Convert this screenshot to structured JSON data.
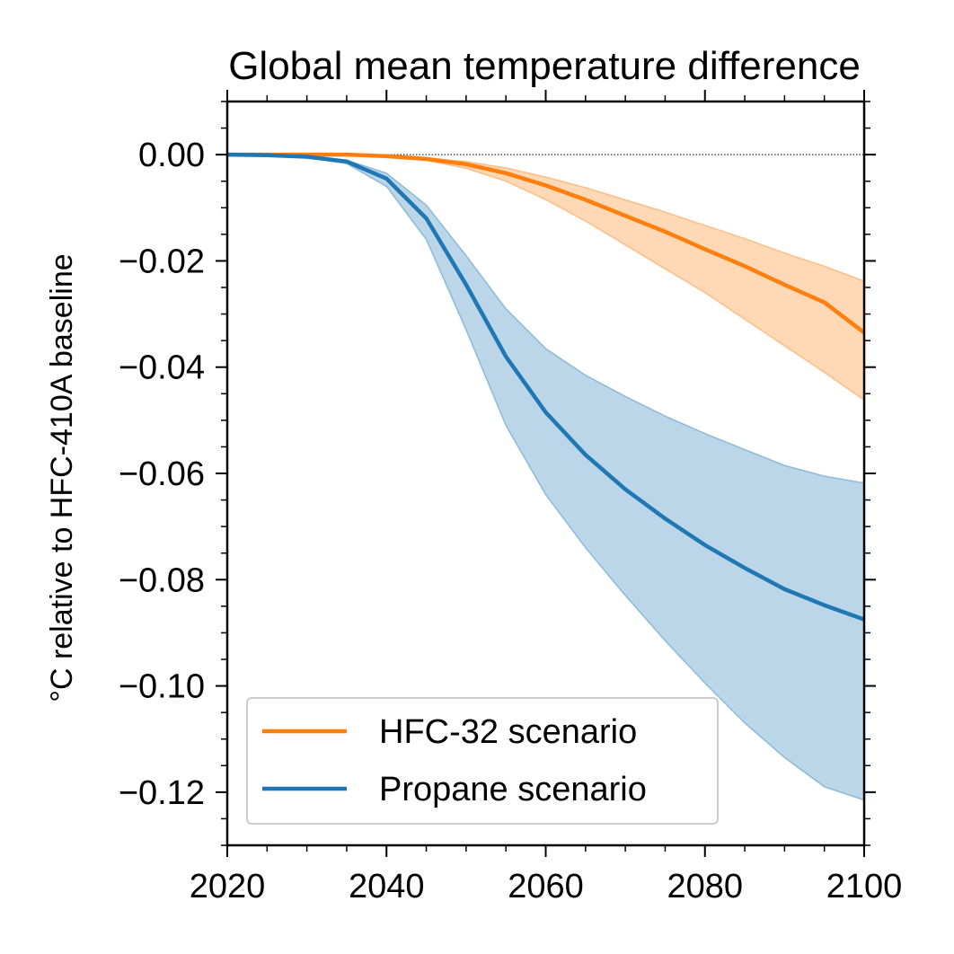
{
  "chart_data": {
    "type": "line",
    "title": "Global mean temperature difference",
    "xlabel": "",
    "ylabel": "°C relative to HFC-410A baseline",
    "xlim": [
      2020,
      2100
    ],
    "ylim": [
      -0.13,
      0.01
    ],
    "x_ticks": [
      "2020",
      "2040",
      "2060",
      "2080",
      "2100"
    ],
    "y_ticks": [
      "0.00",
      "−0.02",
      "−0.04",
      "−0.06",
      "−0.08",
      "−0.10",
      "−0.12"
    ],
    "grid": false,
    "legend_position": "lower-left",
    "reference_line": 0,
    "x": [
      2020,
      2025,
      2030,
      2035,
      2040,
      2045,
      2050,
      2055,
      2060,
      2065,
      2070,
      2075,
      2080,
      2085,
      2090,
      2095,
      2100
    ],
    "series": [
      {
        "name": "HFC-32 scenario",
        "color": "#ff7f0e",
        "values": [
          0,
          0,
          0,
          0,
          -0.0003,
          -0.0008,
          -0.0018,
          -0.0035,
          -0.0058,
          -0.0085,
          -0.0115,
          -0.0145,
          -0.0178,
          -0.021,
          -0.0245,
          -0.0278,
          -0.0335
        ],
        "lower": [
          0,
          0,
          0,
          0,
          -0.0004,
          -0.0011,
          -0.0026,
          -0.005,
          -0.0085,
          -0.0125,
          -0.017,
          -0.0215,
          -0.026,
          -0.031,
          -0.036,
          -0.041,
          -0.0462
        ],
        "upper": [
          0,
          0,
          0,
          0,
          -0.0002,
          -0.0006,
          -0.0013,
          -0.0025,
          -0.0042,
          -0.0062,
          -0.0085,
          -0.0108,
          -0.0133,
          -0.0158,
          -0.0185,
          -0.021,
          -0.0238
        ]
      },
      {
        "name": "Propane scenario",
        "color": "#1f77b4",
        "values": [
          0,
          -0.0001,
          -0.0004,
          -0.0013,
          -0.0045,
          -0.012,
          -0.0245,
          -0.038,
          -0.0485,
          -0.0565,
          -0.063,
          -0.0685,
          -0.0735,
          -0.0778,
          -0.0818,
          -0.0848,
          -0.0875
        ],
        "lower": [
          0,
          -0.0001,
          -0.0005,
          -0.0017,
          -0.006,
          -0.016,
          -0.033,
          -0.051,
          -0.064,
          -0.074,
          -0.083,
          -0.0915,
          -0.0995,
          -0.107,
          -0.1135,
          -0.119,
          -0.1215
        ],
        "upper": [
          0,
          -0.0001,
          -0.0003,
          -0.001,
          -0.0035,
          -0.0095,
          -0.019,
          -0.029,
          -0.0365,
          -0.0415,
          -0.0455,
          -0.0492,
          -0.0525,
          -0.0555,
          -0.0585,
          -0.0605,
          -0.0618
        ]
      }
    ]
  }
}
